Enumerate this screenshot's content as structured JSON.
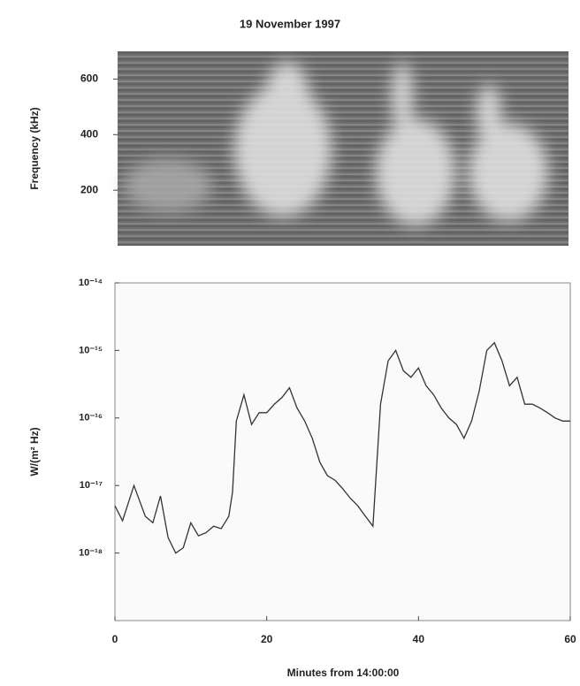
{
  "chart_data": [
    {
      "type": "spectrogram",
      "title": "19 November 1997",
      "ylabel": "Frequency (kHz)",
      "ylim": [
        0,
        700
      ],
      "yticks": [
        200,
        400,
        600
      ]
    },
    {
      "type": "line",
      "ylabel": "W/(m² Hz)",
      "xlabel": "Minutes from 14:00:00",
      "xlim": [
        0,
        60
      ],
      "xticks": [
        0,
        20,
        40,
        60
      ],
      "ylim": [
        1e-19,
        1e-14
      ],
      "log_scale": true,
      "color": "#333333",
      "yticks": [
        {
          "value": 1e-14,
          "label": "10⁻¹⁴"
        },
        {
          "value": 1e-15,
          "label": "10⁻¹⁵"
        },
        {
          "value": 1e-16,
          "label": "10⁻¹⁶"
        },
        {
          "value": 1e-17,
          "label": "10⁻¹⁷"
        },
        {
          "value": 1e-18,
          "label": "10⁻¹⁸"
        }
      ],
      "x": [
        0,
        1,
        2.5,
        4,
        5,
        6,
        7,
        8,
        9,
        10,
        11,
        12,
        13,
        14,
        15,
        15.5,
        16,
        17,
        18,
        19,
        20,
        21,
        22,
        23,
        24,
        25,
        26,
        27,
        28,
        29,
        30,
        31,
        32,
        33,
        34,
        35,
        36,
        37,
        38,
        39,
        40,
        41,
        42,
        43,
        44,
        45,
        46,
        47,
        48,
        49,
        50,
        51,
        52,
        53,
        54,
        55,
        56,
        57,
        58,
        59,
        60
      ],
      "values": [
        5e-18,
        3e-18,
        1e-17,
        3.5e-18,
        2.8e-18,
        7e-18,
        1.7e-18,
        1e-18,
        1.2e-18,
        2.8e-18,
        1.8e-18,
        2e-18,
        2.5e-18,
        2.3e-18,
        3.5e-18,
        8e-18,
        9e-17,
        2.2e-16,
        8e-17,
        1.2e-16,
        1.2e-16,
        1.6e-16,
        2e-16,
        2.8e-16,
        1.4e-16,
        9e-17,
        5e-17,
        2.2e-17,
        1.4e-17,
        1.2e-17,
        9e-18,
        6.5e-18,
        5e-18,
        3.5e-18,
        2.5e-18,
        1.6e-16,
        7e-16,
        1e-15,
        5e-16,
        4e-16,
        5.5e-16,
        3e-16,
        2.2e-16,
        1.4e-16,
        1e-16,
        8e-17,
        5e-17,
        9e-17,
        2.5e-16,
        1e-15,
        1.3e-15,
        7e-16,
        3e-16,
        4e-16,
        1.6e-16,
        1.6e-16,
        1.4e-16,
        1.2e-16,
        1e-16,
        9e-17,
        9e-17
      ]
    }
  ]
}
